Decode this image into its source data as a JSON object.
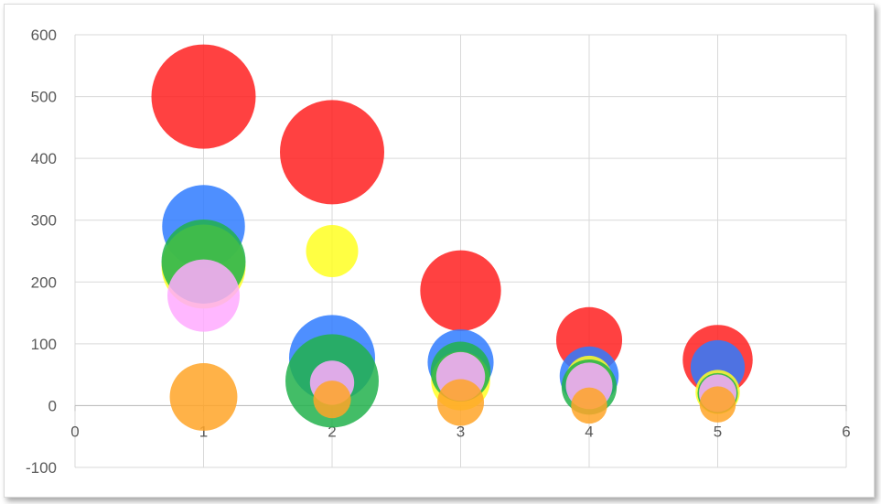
{
  "chart_data": {
    "type": "bubble",
    "title": "",
    "xlabel": "",
    "ylabel": "",
    "xlim": [
      0,
      6
    ],
    "ylim": [
      -100,
      600
    ],
    "x_ticks": [
      "0",
      "1",
      "2",
      "3",
      "4",
      "5",
      "6"
    ],
    "y_ticks": [
      "-100",
      "0",
      "100",
      "200",
      "300",
      "400",
      "500",
      "600"
    ],
    "grid": true,
    "legend": "none",
    "series": [
      {
        "color": "#ff2020",
        "points": [
          {
            "x": 1,
            "y": 500,
            "size": 100
          },
          {
            "x": 2,
            "y": 410,
            "size": 100
          },
          {
            "x": 3,
            "y": 186,
            "size": 60
          },
          {
            "x": 4,
            "y": 106,
            "size": 40
          },
          {
            "x": 5,
            "y": 74,
            "size": 45
          }
        ]
      },
      {
        "color": "#2f7bff",
        "points": [
          {
            "x": 1,
            "y": 290,
            "size": 63
          },
          {
            "x": 2,
            "y": 77,
            "size": 68
          },
          {
            "x": 3,
            "y": 70,
            "size": 40
          },
          {
            "x": 4,
            "y": 48,
            "size": 32
          },
          {
            "x": 5,
            "y": 62,
            "size": 27
          }
        ]
      },
      {
        "color": "#ffff22",
        "points": [
          {
            "x": 1,
            "y": 225,
            "size": 65
          },
          {
            "x": 2,
            "y": 250,
            "size": 25
          },
          {
            "x": 3,
            "y": 40,
            "size": 32
          },
          {
            "x": 4,
            "y": 43,
            "size": 20
          },
          {
            "x": 5,
            "y": 22,
            "size": 18
          }
        ]
      },
      {
        "color": "#22b24c",
        "points": [
          {
            "x": 1,
            "y": 233,
            "size": 65
          },
          {
            "x": 2,
            "y": 40,
            "size": 80
          },
          {
            "x": 3,
            "y": 55,
            "size": 33
          },
          {
            "x": 4,
            "y": 30,
            "size": 28
          },
          {
            "x": 5,
            "y": 20,
            "size": 15
          }
        ]
      },
      {
        "color": "#ffaaff",
        "points": [
          {
            "x": 1,
            "y": 178,
            "size": 48
          },
          {
            "x": 2,
            "y": 37,
            "size": 18
          },
          {
            "x": 3,
            "y": 47,
            "size": 22
          },
          {
            "x": 4,
            "y": 32,
            "size": 20
          },
          {
            "x": 5,
            "y": 20,
            "size": 13
          }
        ]
      },
      {
        "color": "#ffa428",
        "points": [
          {
            "x": 1,
            "y": 14,
            "size": 42
          },
          {
            "x": 2,
            "y": 10,
            "size": 13
          },
          {
            "x": 3,
            "y": 5,
            "size": 20
          },
          {
            "x": 4,
            "y": 0,
            "size": 12
          },
          {
            "x": 5,
            "y": 2,
            "size": 12
          }
        ]
      }
    ]
  }
}
